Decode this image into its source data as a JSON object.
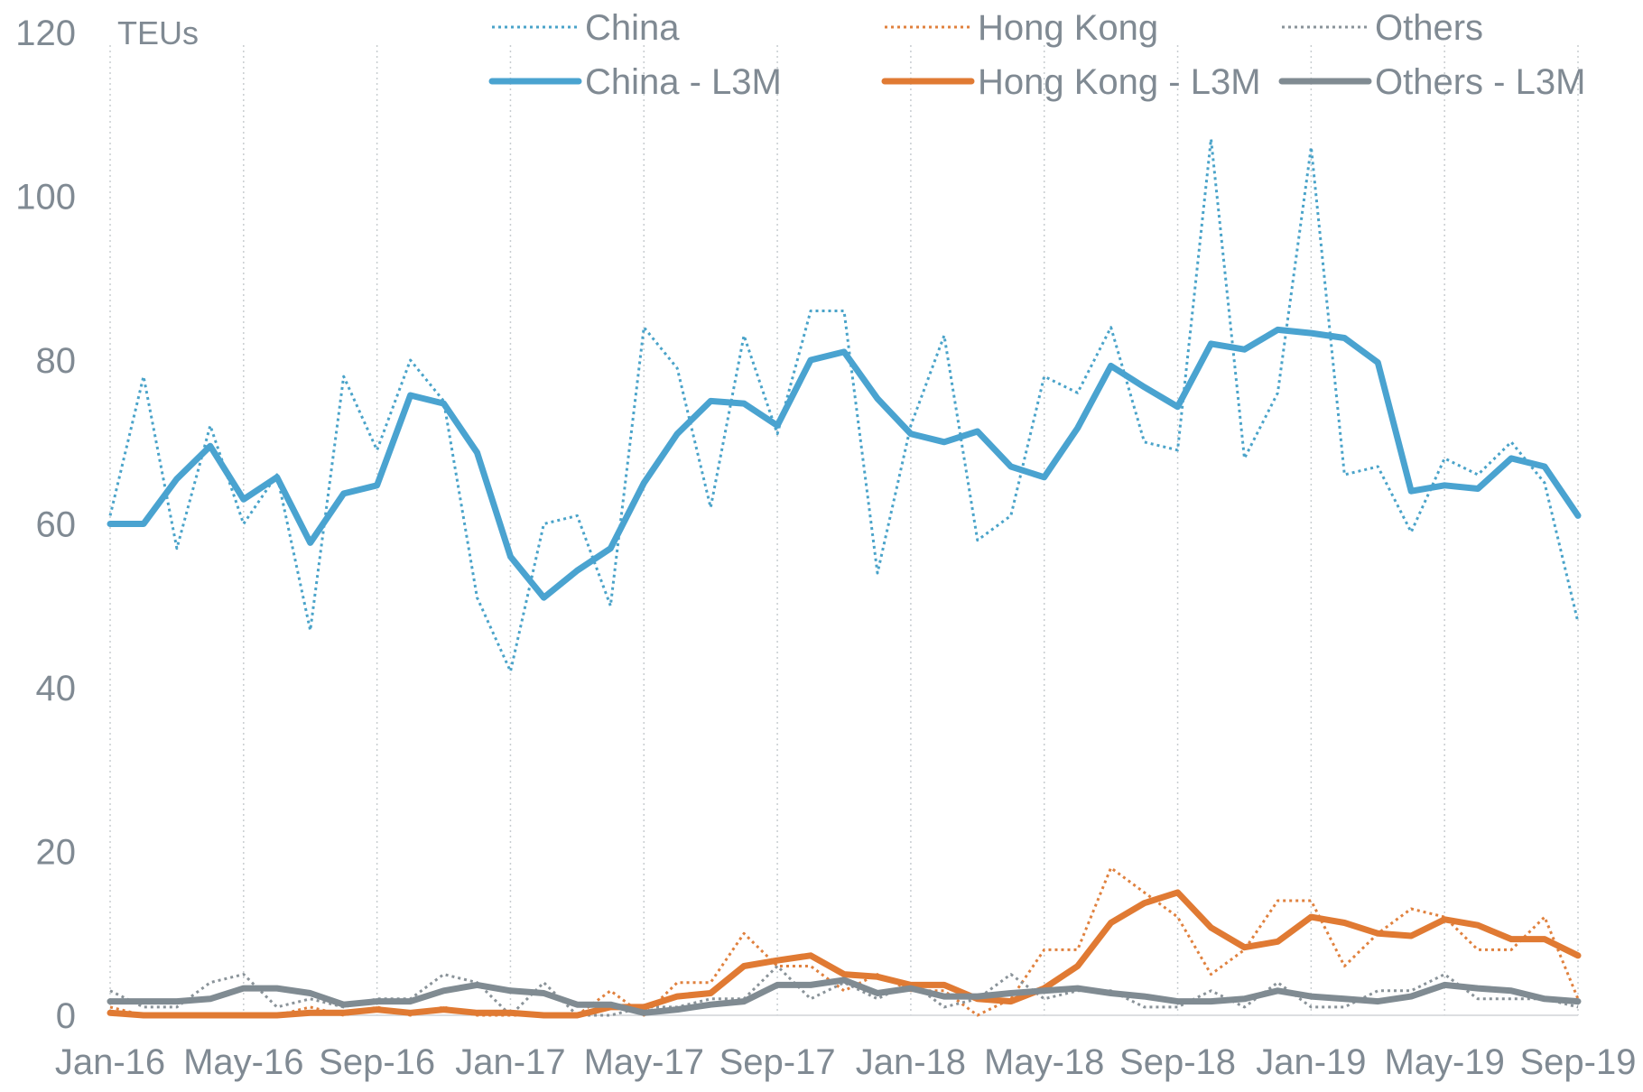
{
  "chart_data": {
    "type": "line",
    "unit_label": "TEUs",
    "ylim": [
      0,
      120
    ],
    "yticks": [
      "0",
      "20",
      "40",
      "60",
      "80",
      "100",
      "120"
    ],
    "x": [
      "Jan-16",
      "Feb-16",
      "Mar-16",
      "Apr-16",
      "May-16",
      "Jun-16",
      "Jul-16",
      "Aug-16",
      "Sep-16",
      "Oct-16",
      "Nov-16",
      "Dec-16",
      "Jan-17",
      "Feb-17",
      "Mar-17",
      "Apr-17",
      "May-17",
      "Jun-17",
      "Jul-17",
      "Aug-17",
      "Sep-17",
      "Oct-17",
      "Nov-17",
      "Dec-17",
      "Jan-18",
      "Feb-18",
      "Mar-18",
      "Apr-18",
      "May-18",
      "Jun-18",
      "Jul-18",
      "Aug-18",
      "Sep-18",
      "Oct-18",
      "Nov-18",
      "Dec-18",
      "Jan-19",
      "Feb-19",
      "Mar-19",
      "Apr-19",
      "May-19",
      "Jun-19",
      "Jul-19",
      "Aug-19",
      "Sep-19"
    ],
    "xticks": [
      "Jan-16",
      "May-16",
      "Sep-16",
      "Jan-17",
      "May-17",
      "Sep-17",
      "Jan-18",
      "May-18",
      "Sep-18",
      "Jan-19",
      "May-19",
      "Sep-19"
    ],
    "grid": {
      "vertical": "dotted",
      "horizontal": "none"
    },
    "legend_position": "top",
    "series": [
      {
        "name": "China",
        "style": "dotted",
        "color": "#4aa3c9",
        "values": [
          61,
          78,
          57,
          72,
          60,
          66,
          47,
          78,
          69,
          80,
          75,
          51,
          42,
          60,
          61,
          50,
          84,
          79,
          62,
          83,
          71,
          86,
          86,
          54,
          72,
          83,
          58,
          61,
          78,
          76,
          84,
          70,
          69,
          107,
          68,
          76,
          106,
          66,
          67,
          59,
          68,
          66,
          70,
          65,
          48
        ]
      },
      {
        "name": "Hong Kong",
        "style": "dotted",
        "color": "#e0813e",
        "values": [
          1,
          0,
          0,
          0,
          0,
          0,
          1,
          0,
          1,
          0,
          1,
          0,
          0,
          0,
          0,
          3,
          0,
          4,
          4,
          10,
          6,
          6,
          3,
          5,
          3,
          3,
          0,
          2,
          8,
          8,
          18,
          15,
          12,
          5,
          8,
          14,
          14,
          6,
          10,
          13,
          12,
          8,
          8,
          12,
          2
        ]
      },
      {
        "name": "Others",
        "style": "dotted",
        "color": "#8a9399",
        "values": [
          3,
          1,
          1,
          4,
          5,
          1,
          2,
          1,
          2,
          2,
          5,
          4,
          0,
          4,
          0,
          0,
          1,
          1,
          2,
          2,
          6,
          2,
          4,
          2,
          4,
          1,
          2,
          5,
          2,
          3,
          3,
          1,
          1,
          3,
          1,
          4,
          1,
          1,
          3,
          3,
          5,
          2,
          2,
          2,
          1
        ]
      },
      {
        "name": "China - L3M",
        "style": "solid",
        "color": "#4aa3d0",
        "values": [
          60,
          60,
          65.5,
          69.5,
          63,
          65.7,
          57.7,
          63.7,
          64.7,
          75.7,
          74.7,
          68.7,
          56,
          51,
          54.3,
          57,
          65,
          71,
          75,
          74.7,
          72,
          80,
          81,
          75.3,
          71,
          70,
          71.3,
          67,
          65.7,
          71.7,
          79.3,
          76.7,
          74.3,
          82,
          81.3,
          83.7,
          83.3,
          82.7,
          79.7,
          64,
          64.7,
          64.3,
          68,
          67,
          61
        ]
      },
      {
        "name": "Hong Kong - L3M",
        "style": "solid",
        "color": "#e07a33",
        "values": [
          0.3,
          0,
          0,
          0,
          0,
          0,
          0.3,
          0.3,
          0.7,
          0.3,
          0.7,
          0.3,
          0.3,
          0,
          0,
          1,
          1,
          2.3,
          2.7,
          6,
          6.7,
          7.3,
          5,
          4.7,
          3.7,
          3.7,
          2,
          1.7,
          3.3,
          6,
          11.3,
          13.7,
          15,
          10.7,
          8.3,
          9,
          12,
          11.3,
          10,
          9.7,
          11.7,
          11,
          9.3,
          9.3,
          7.3
        ]
      },
      {
        "name": "Others - L3M",
        "style": "solid",
        "color": "#808b92",
        "values": [
          1.7,
          1.7,
          1.7,
          2,
          3.3,
          3.3,
          2.7,
          1.3,
          1.7,
          1.7,
          3,
          3.7,
          3,
          2.7,
          1.3,
          1.3,
          0.3,
          0.7,
          1.3,
          1.7,
          3.7,
          3.7,
          4.3,
          2.7,
          3.3,
          2.3,
          2.3,
          2.7,
          3,
          3.3,
          2.7,
          2.3,
          1.7,
          1.7,
          2,
          3,
          2.3,
          2,
          1.7,
          2.3,
          3.7,
          3.3,
          3,
          2,
          1.7
        ]
      }
    ]
  }
}
